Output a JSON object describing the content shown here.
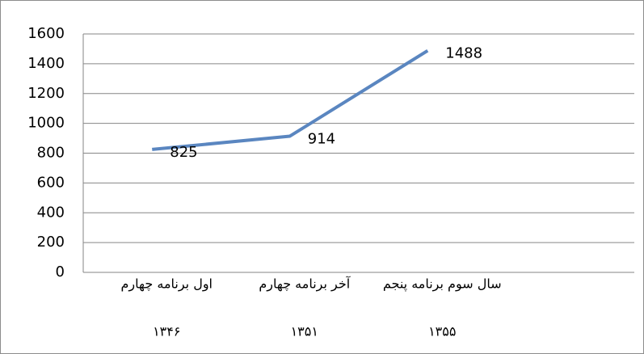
{
  "chart_data": {
    "type": "line",
    "categories": [
      [
        "اول برنامه چهارم",
        "۱۳۴۶"
      ],
      [
        "آخر برنامه چهارم",
        "۱۳۵۱"
      ],
      [
        "سال سوم برنامه پنجم",
        "۱۳۵۵"
      ],
      null
    ],
    "values": [
      825,
      914,
      1488,
      null
    ],
    "color": "#5a86c0",
    "ylim": [
      0,
      1600
    ],
    "yticks": [
      0,
      200,
      400,
      600,
      800,
      1000,
      1200,
      1400,
      1600
    ],
    "grid": true
  }
}
